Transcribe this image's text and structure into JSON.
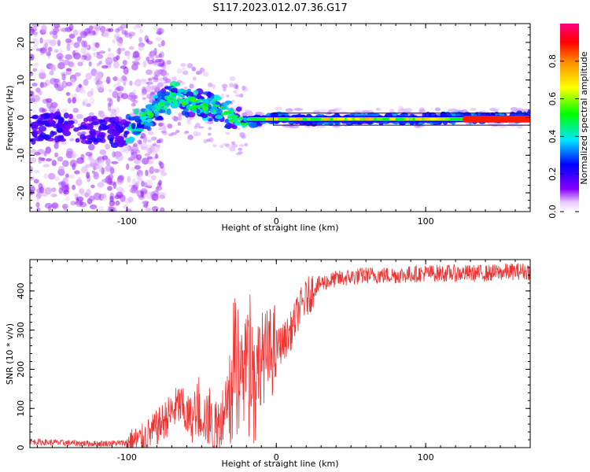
{
  "title": "S117.2023.012.07.36.G17",
  "chart_data": [
    {
      "type": "heatmap",
      "xlabel": "Height of straight line (km)",
      "ylabel": "Frequency (Hz)",
      "xlim": [
        -165,
        170
      ],
      "ylim": [
        -25,
        25
      ],
      "xticks": [
        -100,
        0,
        100
      ],
      "yticks": [
        -20,
        -10,
        0,
        10,
        20
      ],
      "colorbar": {
        "label": "Normalized spectral amplitude",
        "range": [
          0,
          1
        ],
        "ticks": [
          "0.0",
          "0.2",
          "0.4",
          "0.6",
          "0.8"
        ],
        "colormap": "rainbow"
      },
      "trace": {
        "x": [
          -165,
          -150,
          -130,
          -110,
          -100,
          -92,
          -85,
          -78,
          -72,
          -66,
          -60,
          -52,
          -45,
          -38,
          -30,
          -25,
          -20,
          -15,
          -10,
          -5,
          0,
          20,
          50,
          100,
          140,
          170
        ],
        "y": [
          -3,
          -2.5,
          -3,
          -4,
          -3.5,
          -1,
          1,
          3,
          5,
          6,
          4,
          3.5,
          3,
          2,
          0.5,
          -0.5,
          -1,
          -1.2,
          -0.8,
          -0.3,
          0,
          -0.5,
          -0.5,
          -0.3,
          0,
          0
        ]
      }
    },
    {
      "type": "line",
      "xlabel": "Height of straight line (km)",
      "ylabel": "SNR (10 * v/v)",
      "xlim": [
        -165,
        170
      ],
      "ylim": [
        0,
        480
      ],
      "xticks": [
        -100,
        0,
        100
      ],
      "yticks": [
        0,
        100,
        200,
        300,
        400
      ],
      "color": "#ee3333",
      "series": [
        {
          "x": [
            -165,
            -140,
            -120,
            -100,
            -90,
            -85,
            -80,
            -75,
            -70,
            -65,
            -60,
            -55,
            -50,
            -45,
            -40,
            -35,
            -30,
            -25,
            -20,
            -15,
            -10,
            -5,
            0,
            5,
            10,
            15,
            20,
            25,
            30,
            40,
            50,
            60,
            80,
            100,
            120,
            140,
            160,
            170
          ],
          "values": [
            15,
            12,
            10,
            12,
            20,
            35,
            50,
            70,
            90,
            110,
            80,
            70,
            90,
            60,
            40,
            100,
            200,
            230,
            220,
            210,
            230,
            240,
            255,
            270,
            300,
            350,
            380,
            405,
            420,
            430,
            435,
            440,
            440,
            445,
            445,
            445,
            450,
            450
          ]
        }
      ]
    }
  ]
}
